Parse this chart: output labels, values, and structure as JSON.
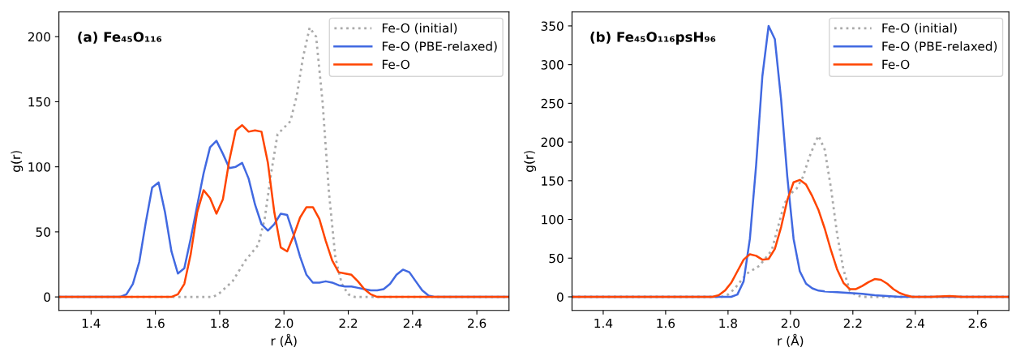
{
  "chart_data": [
    {
      "type": "line",
      "title": "(a) Fe₄₅O₁₁₆",
      "xlabel": "r (Å)",
      "ylabel": "g(r)",
      "xlim": [
        1.3,
        2.7
      ],
      "ylim": [
        -10.4,
        219
      ],
      "xticks": [
        1.4,
        1.6,
        1.8,
        {
          "value": 2.0,
          "label": "2.0"
        },
        2.2,
        2.4,
        2.6
      ],
      "yticks": [
        0,
        50,
        100,
        150,
        200
      ],
      "legend": "top right",
      "grid": false,
      "series": [
        {
          "name": "Fe-O (initial)",
          "color": "#aaaaaa",
          "line_style": "dotted",
          "x": [
            1.3,
            1.78,
            1.8,
            1.84,
            1.88,
            1.92,
            1.94,
            1.96,
            1.98,
            2.0,
            2.02,
            2.04,
            2.06,
            2.08,
            2.1,
            2.12,
            2.14,
            2.16,
            2.18,
            2.2,
            2.22,
            2.7
          ],
          "values": [
            0,
            0,
            3,
            12,
            28,
            40,
            60,
            95,
            125,
            130,
            135,
            155,
            185,
            207,
            200,
            150,
            80,
            30,
            10,
            2,
            0,
            0
          ]
        },
        {
          "name": "Fe-O (PBE-relaxed)",
          "color": "#4169e1",
          "line_style": "solid",
          "x": [
            1.3,
            1.49,
            1.51,
            1.53,
            1.55,
            1.57,
            1.59,
            1.61,
            1.63,
            1.65,
            1.67,
            1.69,
            1.71,
            1.73,
            1.75,
            1.77,
            1.79,
            1.81,
            1.83,
            1.85,
            1.87,
            1.89,
            1.91,
            1.93,
            1.95,
            1.97,
            1.99,
            2.01,
            2.03,
            2.05,
            2.07,
            2.09,
            2.11,
            2.13,
            2.15,
            2.17,
            2.19,
            2.21,
            2.23,
            2.25,
            2.27,
            2.29,
            2.31,
            2.33,
            2.35,
            2.37,
            2.39,
            2.41,
            2.43,
            2.45,
            2.47,
            2.7
          ],
          "values": [
            0,
            0,
            2,
            10,
            27,
            57,
            84,
            88,
            65,
            35,
            18,
            22,
            45,
            70,
            95,
            115,
            120,
            110,
            99,
            100,
            103,
            91,
            71,
            56,
            51,
            56,
            64,
            63,
            48,
            31,
            17,
            11,
            11,
            12,
            11,
            9,
            8,
            8,
            7,
            6,
            5,
            5,
            6,
            10,
            17,
            21,
            19,
            12,
            5,
            1,
            0,
            0
          ]
        },
        {
          "name": "Fe-O",
          "color": "#ff4500",
          "line_style": "solid",
          "x": [
            1.3,
            1.65,
            1.67,
            1.69,
            1.71,
            1.73,
            1.75,
            1.77,
            1.79,
            1.81,
            1.83,
            1.85,
            1.87,
            1.89,
            1.91,
            1.93,
            1.95,
            1.97,
            1.99,
            2.01,
            2.03,
            2.05,
            2.07,
            2.09,
            2.11,
            2.13,
            2.15,
            2.17,
            2.19,
            2.21,
            2.23,
            2.25,
            2.27,
            2.29,
            2.7
          ],
          "values": [
            0,
            0,
            2,
            10,
            33,
            65,
            82,
            76,
            64,
            75,
            105,
            128,
            132,
            127,
            128,
            127,
            103,
            65,
            38,
            35,
            47,
            61,
            69,
            69,
            60,
            43,
            28,
            19,
            18,
            17,
            12,
            6,
            2,
            0,
            0
          ]
        }
      ]
    },
    {
      "type": "line",
      "title": "(b) Fe₄₅O₁₁₆psH₉₆",
      "xlabel": "r (Å)",
      "ylabel": "g(r)",
      "xlim": [
        1.3,
        2.7
      ],
      "ylim": [
        -17.6,
        368
      ],
      "xticks": [
        1.4,
        1.6,
        1.8,
        {
          "value": 2.0,
          "label": "2.0"
        },
        2.2,
        2.4,
        2.6
      ],
      "yticks": [
        0,
        50,
        100,
        150,
        200,
        250,
        300,
        350
      ],
      "legend": "top right",
      "grid": false,
      "series": [
        {
          "name": "Fe-O (initial)",
          "color": "#aaaaaa",
          "line_style": "dotted",
          "x": [
            1.3,
            1.78,
            1.8,
            1.82,
            1.84,
            1.86,
            1.88,
            1.9,
            1.92,
            1.94,
            1.96,
            1.98,
            2.0,
            2.02,
            2.04,
            2.06,
            2.08,
            2.09,
            2.11,
            2.13,
            2.15,
            2.17,
            2.19,
            2.21,
            2.23,
            2.7
          ],
          "values": [
            0,
            0,
            3,
            10,
            20,
            30,
            35,
            40,
            50,
            60,
            90,
            120,
            133,
            140,
            155,
            180,
            200,
            208,
            190,
            140,
            80,
            35,
            8,
            2,
            0,
            0
          ]
        },
        {
          "name": "Fe-O (PBE-relaxed)",
          "color": "#4169e1",
          "line_style": "solid",
          "x": [
            1.3,
            1.81,
            1.83,
            1.85,
            1.87,
            1.89,
            1.91,
            1.93,
            1.95,
            1.97,
            1.99,
            2.01,
            2.03,
            2.05,
            2.07,
            2.09,
            2.11,
            2.15,
            2.19,
            2.23,
            2.27,
            2.31,
            2.35,
            2.7
          ],
          "values": [
            0,
            0,
            3,
            20,
            75,
            170,
            285,
            350,
            333,
            255,
            155,
            75,
            33,
            17,
            11,
            8,
            7,
            6,
            5,
            4,
            2,
            1,
            0,
            0
          ]
        },
        {
          "name": "Fe-O",
          "color": "#ff4500",
          "line_style": "solid",
          "x": [
            1.3,
            1.75,
            1.77,
            1.79,
            1.81,
            1.83,
            1.85,
            1.87,
            1.89,
            1.91,
            1.93,
            1.95,
            1.97,
            1.99,
            2.01,
            2.03,
            2.05,
            2.07,
            2.09,
            2.11,
            2.13,
            2.15,
            2.17,
            2.19,
            2.21,
            2.23,
            2.25,
            2.27,
            2.29,
            2.31,
            2.33,
            2.35,
            2.37,
            2.39,
            2.45,
            2.51,
            2.55,
            2.7
          ],
          "values": [
            0,
            0,
            2,
            8,
            18,
            33,
            48,
            55,
            53,
            48,
            49,
            62,
            90,
            125,
            148,
            151,
            145,
            130,
            112,
            88,
            60,
            35,
            18,
            10,
            10,
            14,
            19,
            23,
            22,
            17,
            10,
            5,
            2,
            0,
            0,
            1,
            0,
            0
          ]
        }
      ]
    }
  ]
}
